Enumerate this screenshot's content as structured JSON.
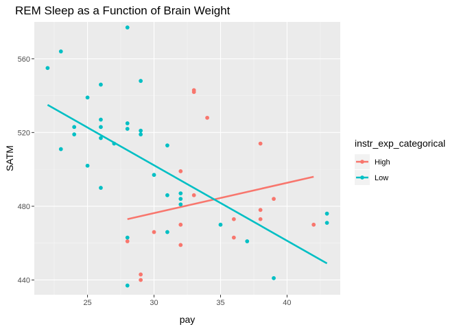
{
  "chart_data": {
    "type": "scatter",
    "title": "REM Sleep as a Function of Brain Weight",
    "xlabel": "pay",
    "ylabel": "SATM",
    "xlim": [
      21.0,
      44.0
    ],
    "ylim": [
      432,
      580
    ],
    "x_ticks": [
      25,
      30,
      35,
      40
    ],
    "y_ticks": [
      440,
      480,
      520,
      560
    ],
    "grid": true,
    "legend": {
      "title": "instr_exp_categorical",
      "position": "right"
    },
    "series": [
      {
        "name": "High",
        "color": "#F8766D",
        "points": [
          {
            "x": 28,
            "y": 461
          },
          {
            "x": 29,
            "y": 443
          },
          {
            "x": 29,
            "y": 440
          },
          {
            "x": 30,
            "y": 466
          },
          {
            "x": 32,
            "y": 499
          },
          {
            "x": 32,
            "y": 470
          },
          {
            "x": 32,
            "y": 459
          },
          {
            "x": 33,
            "y": 543
          },
          {
            "x": 33,
            "y": 542
          },
          {
            "x": 33,
            "y": 486
          },
          {
            "x": 34,
            "y": 528
          },
          {
            "x": 36,
            "y": 473
          },
          {
            "x": 36,
            "y": 463
          },
          {
            "x": 38,
            "y": 514
          },
          {
            "x": 38,
            "y": 478
          },
          {
            "x": 38,
            "y": 473
          },
          {
            "x": 39,
            "y": 484
          },
          {
            "x": 42,
            "y": 470
          }
        ],
        "fit": {
          "x": [
            28,
            42
          ],
          "y": [
            473,
            496
          ]
        }
      },
      {
        "name": "Low",
        "color": "#00BFC4",
        "points": [
          {
            "x": 22,
            "y": 555
          },
          {
            "x": 23,
            "y": 564
          },
          {
            "x": 23,
            "y": 511
          },
          {
            "x": 24,
            "y": 523
          },
          {
            "x": 24,
            "y": 519
          },
          {
            "x": 25,
            "y": 539
          },
          {
            "x": 25,
            "y": 502
          },
          {
            "x": 26,
            "y": 546
          },
          {
            "x": 26,
            "y": 527
          },
          {
            "x": 26,
            "y": 523
          },
          {
            "x": 26,
            "y": 517
          },
          {
            "x": 26,
            "y": 490
          },
          {
            "x": 27,
            "y": 514
          },
          {
            "x": 28,
            "y": 577
          },
          {
            "x": 28,
            "y": 525
          },
          {
            "x": 28,
            "y": 522
          },
          {
            "x": 28,
            "y": 463
          },
          {
            "x": 28,
            "y": 437
          },
          {
            "x": 29,
            "y": 548
          },
          {
            "x": 29,
            "y": 521
          },
          {
            "x": 29,
            "y": 519
          },
          {
            "x": 30,
            "y": 497
          },
          {
            "x": 31,
            "y": 513
          },
          {
            "x": 31,
            "y": 486
          },
          {
            "x": 31,
            "y": 466
          },
          {
            "x": 32,
            "y": 487
          },
          {
            "x": 32,
            "y": 484
          },
          {
            "x": 32,
            "y": 481
          },
          {
            "x": 35,
            "y": 470
          },
          {
            "x": 37,
            "y": 461
          },
          {
            "x": 39,
            "y": 441
          },
          {
            "x": 43,
            "y": 476
          },
          {
            "x": 43,
            "y": 471
          }
        ],
        "fit": {
          "x": [
            22,
            43
          ],
          "y": [
            535,
            449
          ]
        }
      }
    ]
  }
}
